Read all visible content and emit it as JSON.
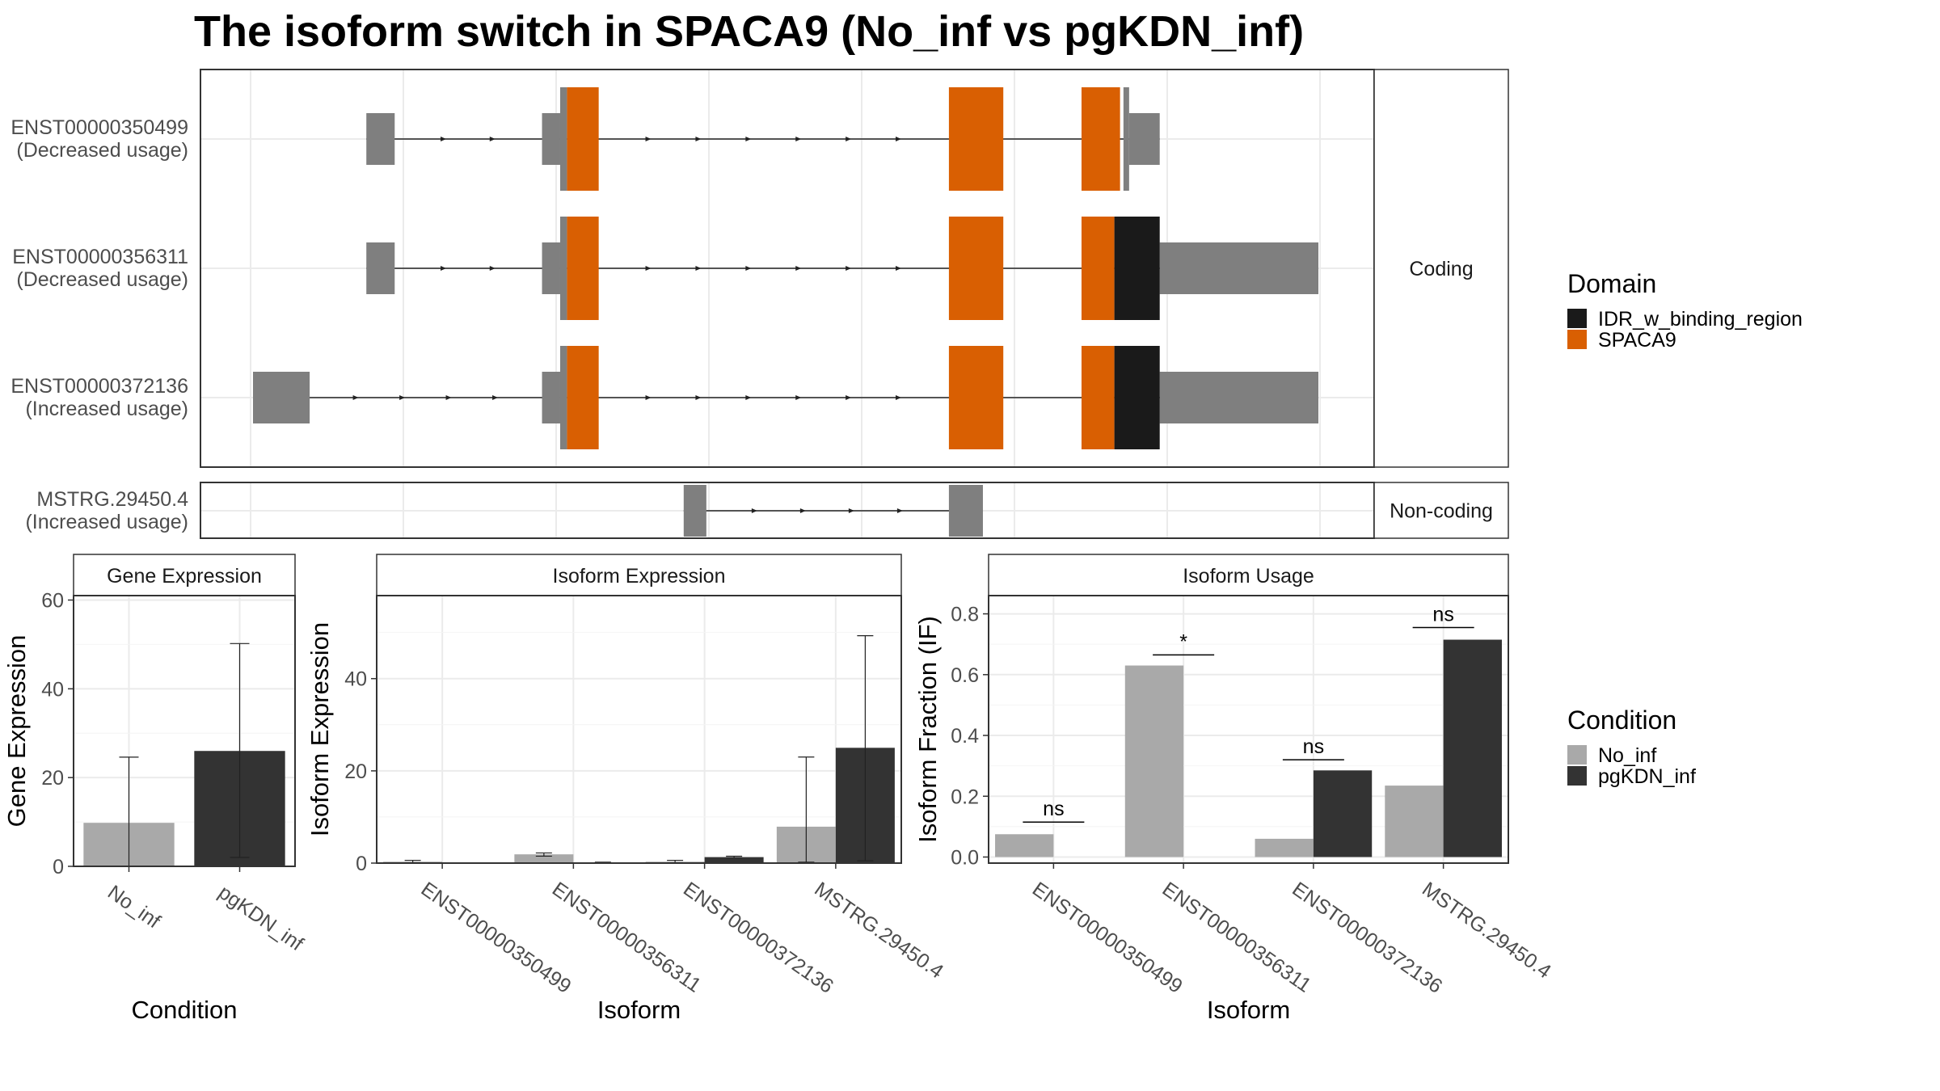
{
  "title": "The isoform switch in SPACA9 (No_inf vs pgKDN_inf)",
  "colors": {
    "utr": "#7f7f7f",
    "spaca9": "#d95f02",
    "idr": "#1a1a1a",
    "no_inf": "#a9a9a9",
    "pgkdn_inf": "#333333",
    "grid": "#ebebeb",
    "strip": "#ffffff"
  },
  "chart_data": [
    {
      "type": "gene-structure",
      "panels": [
        {
          "strip": "Coding",
          "isoforms": [
            {
              "id": "ENST00000350499",
              "usage": "(Decreased usage)",
              "utr": [
                [
                  19400,
                  19650
                ],
                [
                  20950,
                  21110
                ],
                [
                  26080,
                  26130
                ],
                [
                  26130,
                  26400
                ]
              ],
              "domains": [
                {
                  "name": "SPACA9",
                  "ranges": [
                    [
                      21170,
                      21450
                    ],
                    [
                      24540,
                      25020
                    ],
                    [
                      25710,
                      26050
                    ]
                  ]
                }
              ]
            },
            {
              "id": "ENST00000356311",
              "usage": "(Decreased usage)",
              "utr": [
                [
                  19400,
                  19650
                ],
                [
                  20950,
                  21110
                ],
                [
                  26400,
                  27800
                ]
              ],
              "domains": [
                {
                  "name": "SPACA9",
                  "ranges": [
                    [
                      21170,
                      21450
                    ],
                    [
                      24540,
                      25020
                    ],
                    [
                      25710,
                      26000
                    ]
                  ]
                },
                {
                  "name": "IDR_w_binding_region",
                  "ranges": [
                    [
                      26000,
                      26400
                    ]
                  ]
                }
              ]
            },
            {
              "id": "ENST00000372136",
              "usage": "(Increased usage)",
              "utr": [
                [
                  18400,
                  18900
                ],
                [
                  20950,
                  21110
                ],
                [
                  26400,
                  27800
                ]
              ],
              "domains": [
                {
                  "name": "SPACA9",
                  "ranges": [
                    [
                      21170,
                      21450
                    ],
                    [
                      24540,
                      25020
                    ],
                    [
                      25710,
                      26000
                    ]
                  ]
                },
                {
                  "name": "IDR_w_binding_region",
                  "ranges": [
                    [
                      26000,
                      26400
                    ]
                  ]
                }
              ]
            }
          ]
        },
        {
          "strip": "Non-coding",
          "isoforms": [
            {
              "id": "MSTRG.29450.4",
              "usage": "(Increased usage)",
              "utr": [
                [
                  22200,
                  22400
                ],
                [
                  24540,
                  24840
                ]
              ],
              "domains": []
            }
          ]
        }
      ],
      "legend": {
        "title": "Domain",
        "entries": [
          "IDR_w_binding_region",
          "SPACA9"
        ]
      }
    },
    {
      "type": "bar",
      "strip": "Gene Expression",
      "xlabel": "Condition",
      "ylabel": "Gene Expression",
      "ylim": [
        0,
        61
      ],
      "yticks": [
        "0",
        "20",
        "40",
        "60"
      ],
      "categories": [
        "No_inf",
        "pgKDN_inf"
      ],
      "values": [
        9.8,
        26
      ],
      "err_low": [
        0,
        2
      ],
      "err_high": [
        24.6,
        50.2
      ]
    },
    {
      "type": "bar",
      "strip": "Isoform Expression",
      "xlabel": "Isoform",
      "ylabel": "Isoform Expression",
      "ylim": [
        0,
        58
      ],
      "yticks": [
        "0",
        "20",
        "40"
      ],
      "categories": [
        "ENST00000350499",
        "ENST00000356311",
        "ENST00000372136",
        "MSTRG.29450.4"
      ],
      "series": [
        {
          "name": "No_inf",
          "values": [
            0.3,
            1.9,
            0.3,
            7.9
          ],
          "err_low": [
            0.1,
            1.5,
            0.1,
            0.2
          ],
          "err_high": [
            0.6,
            2.2,
            0.6,
            23
          ]
        },
        {
          "name": "pgKDN_inf",
          "values": [
            0,
            0.1,
            1.3,
            25
          ],
          "err_low": [
            0,
            0,
            1.2,
            0.5
          ],
          "err_high": [
            0,
            0.2,
            1.5,
            49.3
          ]
        }
      ]
    },
    {
      "type": "bar",
      "strip": "Isoform Usage",
      "xlabel": "Isoform",
      "ylabel": "Isoform Fraction (IF)",
      "ylim": [
        -0.02,
        0.86
      ],
      "yticks": [
        "0.0",
        "0.2",
        "0.4",
        "0.6",
        "0.8"
      ],
      "categories": [
        "ENST00000350499",
        "ENST00000356311",
        "ENST00000372136",
        "MSTRG.29450.4"
      ],
      "series": [
        {
          "name": "No_inf",
          "values": [
            0.075,
            0.63,
            0.06,
            0.235
          ]
        },
        {
          "name": "pgKDN_inf",
          "values": [
            0,
            0,
            0.285,
            0.715
          ]
        }
      ],
      "significance": [
        "ns",
        "*",
        "ns",
        "ns"
      ],
      "significance_y": [
        0.115,
        0.665,
        0.32,
        0.755
      ]
    }
  ],
  "condition_legend": {
    "title": "Condition",
    "entries": [
      "No_inf",
      "pgKDN_inf"
    ]
  }
}
